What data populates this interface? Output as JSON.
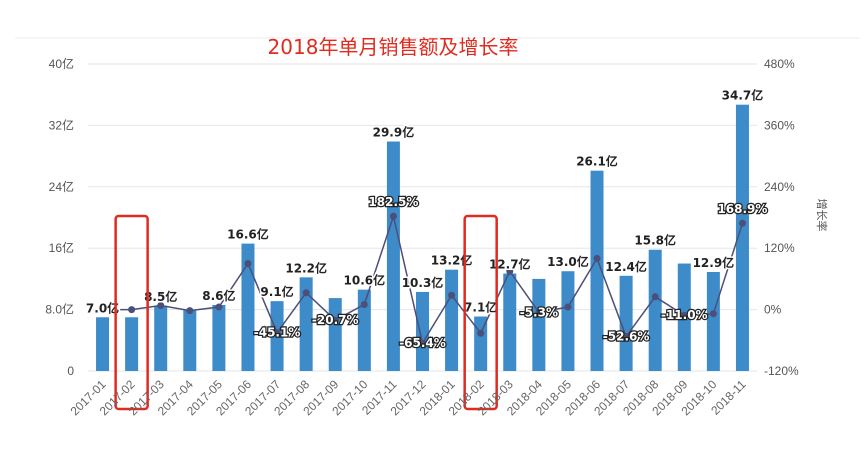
{
  "chart_data": {
    "type": "bar",
    "title": "2018年单月销售额及增长率",
    "categories": [
      "2017-01",
      "2017-02",
      "2017-03",
      "2017-04",
      "2017-05",
      "2017-06",
      "2017-07",
      "2017-08",
      "2017-09",
      "2017-10",
      "2017-11",
      "2017-12",
      "2018-01",
      "2018-02",
      "2018-03",
      "2018-04",
      "2018-05",
      "2018-06",
      "2018-07",
      "2018-08",
      "2018-09",
      "2018-10",
      "2018-11"
    ],
    "series": [
      {
        "axis": "left",
        "kind": "bar",
        "values": [
          7.0,
          7.0,
          8.5,
          8.0,
          8.6,
          16.6,
          9.1,
          12.2,
          9.5,
          10.6,
          29.9,
          10.3,
          13.2,
          7.1,
          12.7,
          12.0,
          13.0,
          26.1,
          12.4,
          15.8,
          14.0,
          12.9,
          34.7
        ],
        "labels": [
          "7.0亿",
          "",
          "8.5亿",
          "",
          "8.6亿",
          "16.6亿",
          "9.1亿",
          "12.2亿",
          "",
          "10.6亿",
          "29.9亿",
          "10.3亿",
          "13.2亿",
          "7.1亿",
          "12.7亿",
          "",
          "13.0亿",
          "26.1亿",
          "12.4亿",
          "15.8亿",
          "",
          "12.9亿",
          "34.7亿"
        ]
      },
      {
        "axis": "right",
        "kind": "line",
        "values": [
          0,
          0,
          8,
          -2,
          5,
          90,
          -45.1,
          33,
          -20.7,
          10,
          182.5,
          -65.4,
          28,
          -46.2,
          75,
          -5.3,
          5,
          100,
          -52.6,
          25,
          -11.0,
          -8,
          168.9
        ],
        "labels": [
          "",
          "",
          "",
          "",
          "",
          "",
          "-45.1%",
          "",
          "-20.7%",
          "",
          "182.5%",
          "-65.4%",
          "",
          "",
          "",
          "-5.3%",
          "",
          "",
          "-52.6%",
          "",
          "-11.0%",
          "",
          "168.9%"
        ]
      }
    ],
    "y_left": {
      "ticks": [
        "0",
        "8.0亿",
        "16亿",
        "24亿",
        "32亿",
        "40亿"
      ],
      "ylim": [
        0,
        40
      ]
    },
    "y_right": {
      "label": "增长率",
      "ticks": [
        "-120%",
        "0%",
        "120%",
        "240%",
        "360%",
        "480%"
      ],
      "ylim": [
        -120,
        480
      ]
    },
    "highlighted_categories": [
      "2017-02",
      "2018-02"
    ],
    "colors": {
      "bar": "#3d8bc9",
      "line": "#4b4f7a",
      "highlight": "#e02b20",
      "grid": "#e6e6e6"
    },
    "grid": true,
    "legend": "none"
  }
}
